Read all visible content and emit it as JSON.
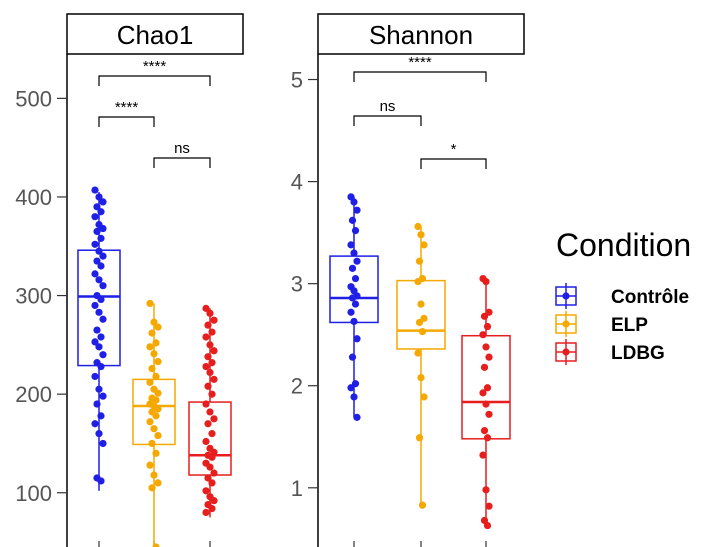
{
  "chart_data": [
    {
      "type": "box",
      "title": "Chao1",
      "categories": [
        "Contrôle",
        "ELP",
        "LDBG"
      ],
      "colors": [
        "#1f1fe6",
        "#f5a800",
        "#e61e1e"
      ],
      "ylim": [
        45,
        545
      ],
      "yticks": [
        "100",
        "200",
        "300",
        "400",
        "500"
      ],
      "boxes": [
        {
          "q1": 229,
          "median": 299,
          "q3": 346,
          "whisker_low": 102,
          "whisker_high": 405
        },
        {
          "q1": 149,
          "median": 188,
          "q3": 215,
          "whisker_low": 45,
          "whisker_high": 292
        },
        {
          "q1": 118,
          "median": 138,
          "q3": 192,
          "whisker_low": 75,
          "whisker_high": 287
        }
      ],
      "points": [
        [
          407,
          400,
          395,
          390,
          385,
          380,
          372,
          368,
          365,
          358,
          352,
          345,
          340,
          335,
          330,
          322,
          316,
          310,
          300,
          296,
          290,
          283,
          276,
          265,
          258,
          253,
          248,
          240,
          232,
          228,
          218,
          205,
          198,
          190,
          178,
          170,
          160,
          150,
          115,
          112
        ],
        [
          292,
          273,
          268,
          262,
          252,
          248,
          241,
          233,
          226,
          218,
          212,
          205,
          201,
          196,
          194,
          190,
          188,
          185,
          182,
          178,
          172,
          165,
          158,
          150,
          140,
          128,
          118,
          110,
          105,
          45
        ],
        [
          287,
          282,
          275,
          270,
          263,
          258,
          250,
          244,
          238,
          232,
          228,
          222,
          215,
          208,
          200,
          190,
          182,
          175,
          170,
          160,
          152,
          145,
          141,
          138,
          136,
          130,
          126,
          120,
          115,
          110,
          102,
          96,
          92,
          88,
          84,
          80
        ]
      ],
      "comparisons": [
        {
          "groups": [
            "Contrôle",
            "LDBG"
          ],
          "label": "****"
        },
        {
          "groups": [
            "Contrôle",
            "ELP"
          ],
          "label": "****"
        },
        {
          "groups": [
            "ELP",
            "LDBG"
          ],
          "label": "ns"
        }
      ]
    },
    {
      "type": "box",
      "title": "Shannon",
      "categories": [
        "Contrôle",
        "ELP",
        "LDBG"
      ],
      "colors": [
        "#1f1fe6",
        "#f5a800",
        "#e61e1e"
      ],
      "ylim": [
        0.42,
        5.25
      ],
      "yticks": [
        "1",
        "2",
        "3",
        "4",
        "5"
      ],
      "boxes": [
        {
          "q1": 2.62,
          "median": 2.86,
          "q3": 3.27,
          "whisker_low": 1.69,
          "whisker_high": 3.85
        },
        {
          "q1": 2.36,
          "median": 2.54,
          "q3": 3.03,
          "whisker_low": 0.83,
          "whisker_high": 3.56
        },
        {
          "q1": 1.48,
          "median": 1.84,
          "q3": 2.49,
          "whisker_low": 0.63,
          "whisker_high": 3.05
        }
      ],
      "points": [
        [
          3.85,
          3.8,
          3.72,
          3.62,
          3.52,
          3.38,
          3.3,
          3.22,
          3.15,
          3.05,
          2.97,
          2.93,
          2.88,
          2.86,
          2.8,
          2.72,
          2.63,
          2.46,
          2.28,
          2.02,
          1.98,
          1.89,
          1.69
        ],
        [
          3.56,
          3.48,
          3.38,
          3.22,
          3.05,
          3.02,
          2.8,
          2.66,
          2.62,
          2.53,
          2.32,
          2.08,
          1.89,
          1.49,
          0.83
        ],
        [
          3.05,
          3.02,
          2.72,
          2.68,
          2.58,
          2.5,
          2.38,
          2.28,
          2.18,
          1.98,
          1.93,
          1.82,
          1.72,
          1.56,
          1.49,
          1.32,
          0.98,
          0.82,
          0.68,
          0.63
        ]
      ],
      "comparisons": [
        {
          "groups": [
            "Contrôle",
            "LDBG"
          ],
          "label": "****"
        },
        {
          "groups": [
            "Contrôle",
            "ELP"
          ],
          "label": "ns"
        },
        {
          "groups": [
            "ELP",
            "LDBG"
          ],
          "label": "*"
        }
      ]
    }
  ],
  "legend": {
    "title": "Condition",
    "items": [
      {
        "label": "Contrôle",
        "color": "#1f1fe6"
      },
      {
        "label": "ELP",
        "color": "#f5a800"
      },
      {
        "label": "LDBG",
        "color": "#e61e1e"
      }
    ]
  }
}
